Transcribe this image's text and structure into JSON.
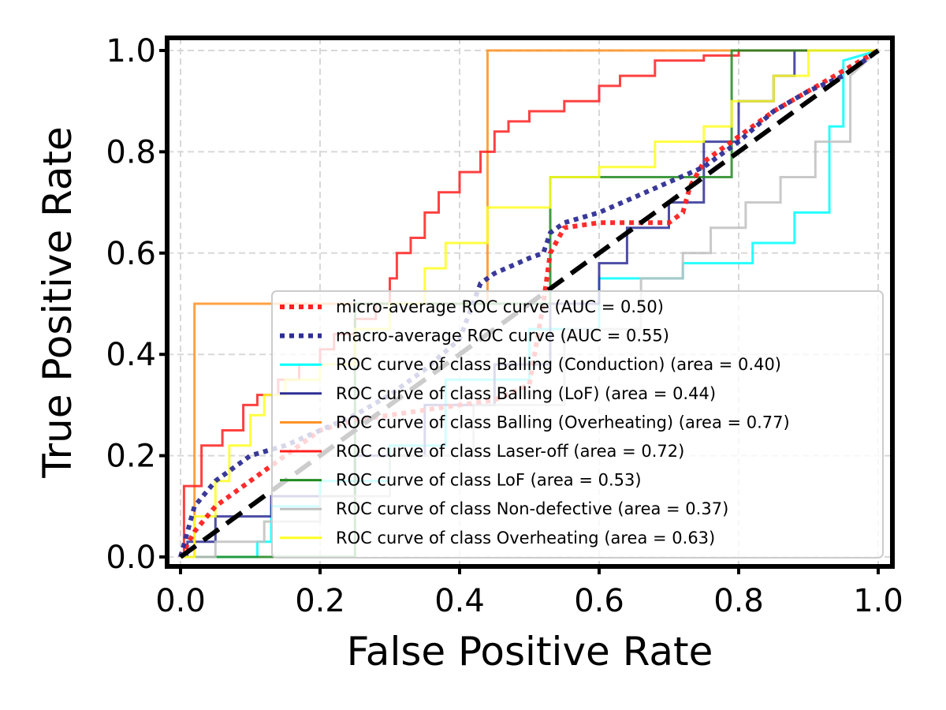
{
  "chart_data": {
    "type": "line",
    "title": "",
    "xlabel": "False Positive Rate",
    "ylabel": "True Positive Rate",
    "xlim": [
      0.0,
      1.0
    ],
    "ylim": [
      0.0,
      1.0
    ],
    "xticks": [
      "0.0",
      "0.2",
      "0.4",
      "0.6",
      "0.8",
      "1.0"
    ],
    "yticks": [
      "0.0",
      "0.2",
      "0.4",
      "0.6",
      "0.8",
      "1.0"
    ],
    "grid": true,
    "legend_position": "lower right",
    "series": [
      {
        "name": "micro-average ROC curve (AUC = 0.50)",
        "color": "#ff2020",
        "style": "dotted",
        "x": [
          0.0,
          0.02,
          0.05,
          0.1,
          0.15,
          0.2,
          0.25,
          0.3,
          0.35,
          0.4,
          0.45,
          0.5,
          0.52,
          0.53,
          0.55,
          0.6,
          0.65,
          0.7,
          0.72,
          0.73,
          0.75,
          0.8,
          0.85,
          0.9,
          0.95,
          1.0
        ],
        "y": [
          0.0,
          0.05,
          0.1,
          0.15,
          0.2,
          0.25,
          0.27,
          0.28,
          0.29,
          0.3,
          0.31,
          0.34,
          0.5,
          0.6,
          0.65,
          0.66,
          0.66,
          0.66,
          0.68,
          0.73,
          0.78,
          0.83,
          0.88,
          0.92,
          0.96,
          1.0
        ]
      },
      {
        "name": "macro-average ROC curve (AUC = 0.55)",
        "color": "#2e2e95",
        "style": "dotted",
        "x": [
          0.0,
          0.02,
          0.05,
          0.1,
          0.15,
          0.2,
          0.25,
          0.3,
          0.35,
          0.4,
          0.43,
          0.45,
          0.5,
          0.52,
          0.53,
          0.55,
          0.6,
          0.65,
          0.7,
          0.75,
          0.8,
          0.85,
          0.9,
          0.95,
          1.0
        ],
        "y": [
          0.0,
          0.1,
          0.15,
          0.2,
          0.22,
          0.25,
          0.28,
          0.32,
          0.37,
          0.43,
          0.54,
          0.56,
          0.59,
          0.6,
          0.64,
          0.66,
          0.68,
          0.71,
          0.74,
          0.77,
          0.82,
          0.88,
          0.92,
          0.95,
          1.0
        ]
      },
      {
        "name": "ROC curve of class Balling (Conduction) (area = 0.40)",
        "color": "#00ffff",
        "style": "solid",
        "x": [
          0.0,
          0.11,
          0.11,
          0.13,
          0.13,
          0.2,
          0.2,
          0.3,
          0.3,
          0.38,
          0.38,
          0.5,
          0.5,
          0.6,
          0.6,
          0.72,
          0.72,
          0.82,
          0.82,
          0.88,
          0.88,
          0.93,
          0.93,
          0.95,
          0.95,
          1.0
        ],
        "y": [
          0.0,
          0.0,
          0.03,
          0.03,
          0.1,
          0.1,
          0.15,
          0.15,
          0.22,
          0.22,
          0.35,
          0.35,
          0.45,
          0.45,
          0.55,
          0.55,
          0.58,
          0.58,
          0.62,
          0.62,
          0.68,
          0.68,
          0.85,
          0.85,
          0.98,
          1.0
        ]
      },
      {
        "name": "ROC curve of class Balling (LoF) (area = 0.44)",
        "color": "#2e2e95",
        "style": "solid",
        "x": [
          0.0,
          0.01,
          0.01,
          0.05,
          0.05,
          0.13,
          0.13,
          0.25,
          0.25,
          0.35,
          0.35,
          0.45,
          0.45,
          0.53,
          0.53,
          0.6,
          0.6,
          0.64,
          0.64,
          0.7,
          0.7,
          0.75,
          0.75,
          0.8,
          0.8,
          0.85,
          0.85,
          0.88,
          0.88,
          1.0
        ],
        "y": [
          0.0,
          0.0,
          0.03,
          0.03,
          0.08,
          0.08,
          0.12,
          0.12,
          0.2,
          0.2,
          0.3,
          0.3,
          0.38,
          0.38,
          0.5,
          0.5,
          0.58,
          0.58,
          0.65,
          0.65,
          0.7,
          0.7,
          0.82,
          0.82,
          0.9,
          0.9,
          0.95,
          0.95,
          1.0,
          1.0
        ]
      },
      {
        "name": "ROC curve of class Balling (Overheating) (area = 0.77)",
        "color": "#ff9020",
        "style": "solid",
        "x": [
          0.0,
          0.02,
          0.02,
          0.44,
          0.44,
          1.0
        ],
        "y": [
          0.0,
          0.0,
          0.5,
          0.5,
          1.0,
          1.0
        ]
      },
      {
        "name": "ROC curve of class Laser-off (area = 0.72)",
        "color": "#ff2020",
        "style": "solid",
        "x": [
          0.0,
          0.005,
          0.005,
          0.03,
          0.03,
          0.06,
          0.06,
          0.09,
          0.09,
          0.11,
          0.11,
          0.14,
          0.14,
          0.17,
          0.17,
          0.2,
          0.2,
          0.22,
          0.22,
          0.25,
          0.25,
          0.28,
          0.28,
          0.3,
          0.3,
          0.31,
          0.31,
          0.33,
          0.33,
          0.35,
          0.35,
          0.37,
          0.37,
          0.4,
          0.4,
          0.43,
          0.43,
          0.45,
          0.45,
          0.47,
          0.47,
          0.5,
          0.5,
          0.55,
          0.55,
          0.6,
          0.6,
          0.63,
          0.63,
          0.68,
          0.68,
          0.75,
          0.75,
          0.8,
          0.8,
          1.0
        ],
        "y": [
          0.0,
          0.0,
          0.14,
          0.14,
          0.22,
          0.22,
          0.25,
          0.25,
          0.3,
          0.3,
          0.32,
          0.32,
          0.35,
          0.35,
          0.38,
          0.38,
          0.41,
          0.41,
          0.44,
          0.44,
          0.47,
          0.47,
          0.5,
          0.5,
          0.55,
          0.55,
          0.6,
          0.6,
          0.63,
          0.63,
          0.68,
          0.68,
          0.72,
          0.72,
          0.76,
          0.76,
          0.8,
          0.8,
          0.84,
          0.84,
          0.86,
          0.86,
          0.88,
          0.88,
          0.9,
          0.9,
          0.93,
          0.93,
          0.95,
          0.95,
          0.98,
          0.98,
          0.99,
          0.99,
          1.0,
          1.0
        ]
      },
      {
        "name": "ROC curve of class LoF (area = 0.53)",
        "color": "#208a20",
        "style": "solid",
        "x": [
          0.0,
          0.25,
          0.25,
          0.53,
          0.53,
          0.79,
          0.79,
          1.0
        ],
        "y": [
          0.0,
          0.0,
          0.5,
          0.5,
          0.75,
          0.75,
          1.0,
          1.0
        ]
      },
      {
        "name": "ROC curve of class Non-defective (area = 0.37)",
        "color": "#c0c0c0",
        "style": "solid",
        "x": [
          0.0,
          0.05,
          0.05,
          0.12,
          0.12,
          0.2,
          0.2,
          0.3,
          0.3,
          0.42,
          0.42,
          0.55,
          0.55,
          0.66,
          0.66,
          0.72,
          0.72,
          0.76,
          0.76,
          0.81,
          0.81,
          0.86,
          0.86,
          0.91,
          0.91,
          0.96,
          0.96,
          1.0
        ],
        "y": [
          0.0,
          0.0,
          0.03,
          0.03,
          0.07,
          0.07,
          0.12,
          0.12,
          0.2,
          0.2,
          0.3,
          0.3,
          0.45,
          0.45,
          0.55,
          0.55,
          0.6,
          0.6,
          0.65,
          0.65,
          0.7,
          0.7,
          0.75,
          0.75,
          0.82,
          0.82,
          0.95,
          1.0
        ]
      },
      {
        "name": "ROC curve of class Overheating (area = 0.63)",
        "color": "#ffff20",
        "style": "solid",
        "x": [
          0.0,
          0.02,
          0.02,
          0.05,
          0.05,
          0.07,
          0.07,
          0.1,
          0.1,
          0.12,
          0.12,
          0.15,
          0.15,
          0.2,
          0.2,
          0.25,
          0.25,
          0.3,
          0.3,
          0.35,
          0.35,
          0.38,
          0.38,
          0.44,
          0.44,
          0.53,
          0.53,
          0.6,
          0.6,
          0.68,
          0.68,
          0.75,
          0.75,
          0.79,
          0.79,
          0.85,
          0.85,
          0.9,
          0.9,
          1.0
        ],
        "y": [
          0.0,
          0.0,
          0.08,
          0.08,
          0.15,
          0.15,
          0.22,
          0.22,
          0.28,
          0.28,
          0.32,
          0.32,
          0.35,
          0.35,
          0.38,
          0.38,
          0.45,
          0.45,
          0.5,
          0.5,
          0.57,
          0.57,
          0.62,
          0.62,
          0.69,
          0.69,
          0.75,
          0.75,
          0.77,
          0.77,
          0.82,
          0.82,
          0.85,
          0.85,
          0.9,
          0.9,
          0.95,
          0.95,
          1.0,
          1.0
        ]
      }
    ],
    "diagonal": {
      "color": "#000000",
      "style": "dashed",
      "x": [
        0.0,
        1.0
      ],
      "y": [
        0.0,
        1.0
      ]
    }
  }
}
